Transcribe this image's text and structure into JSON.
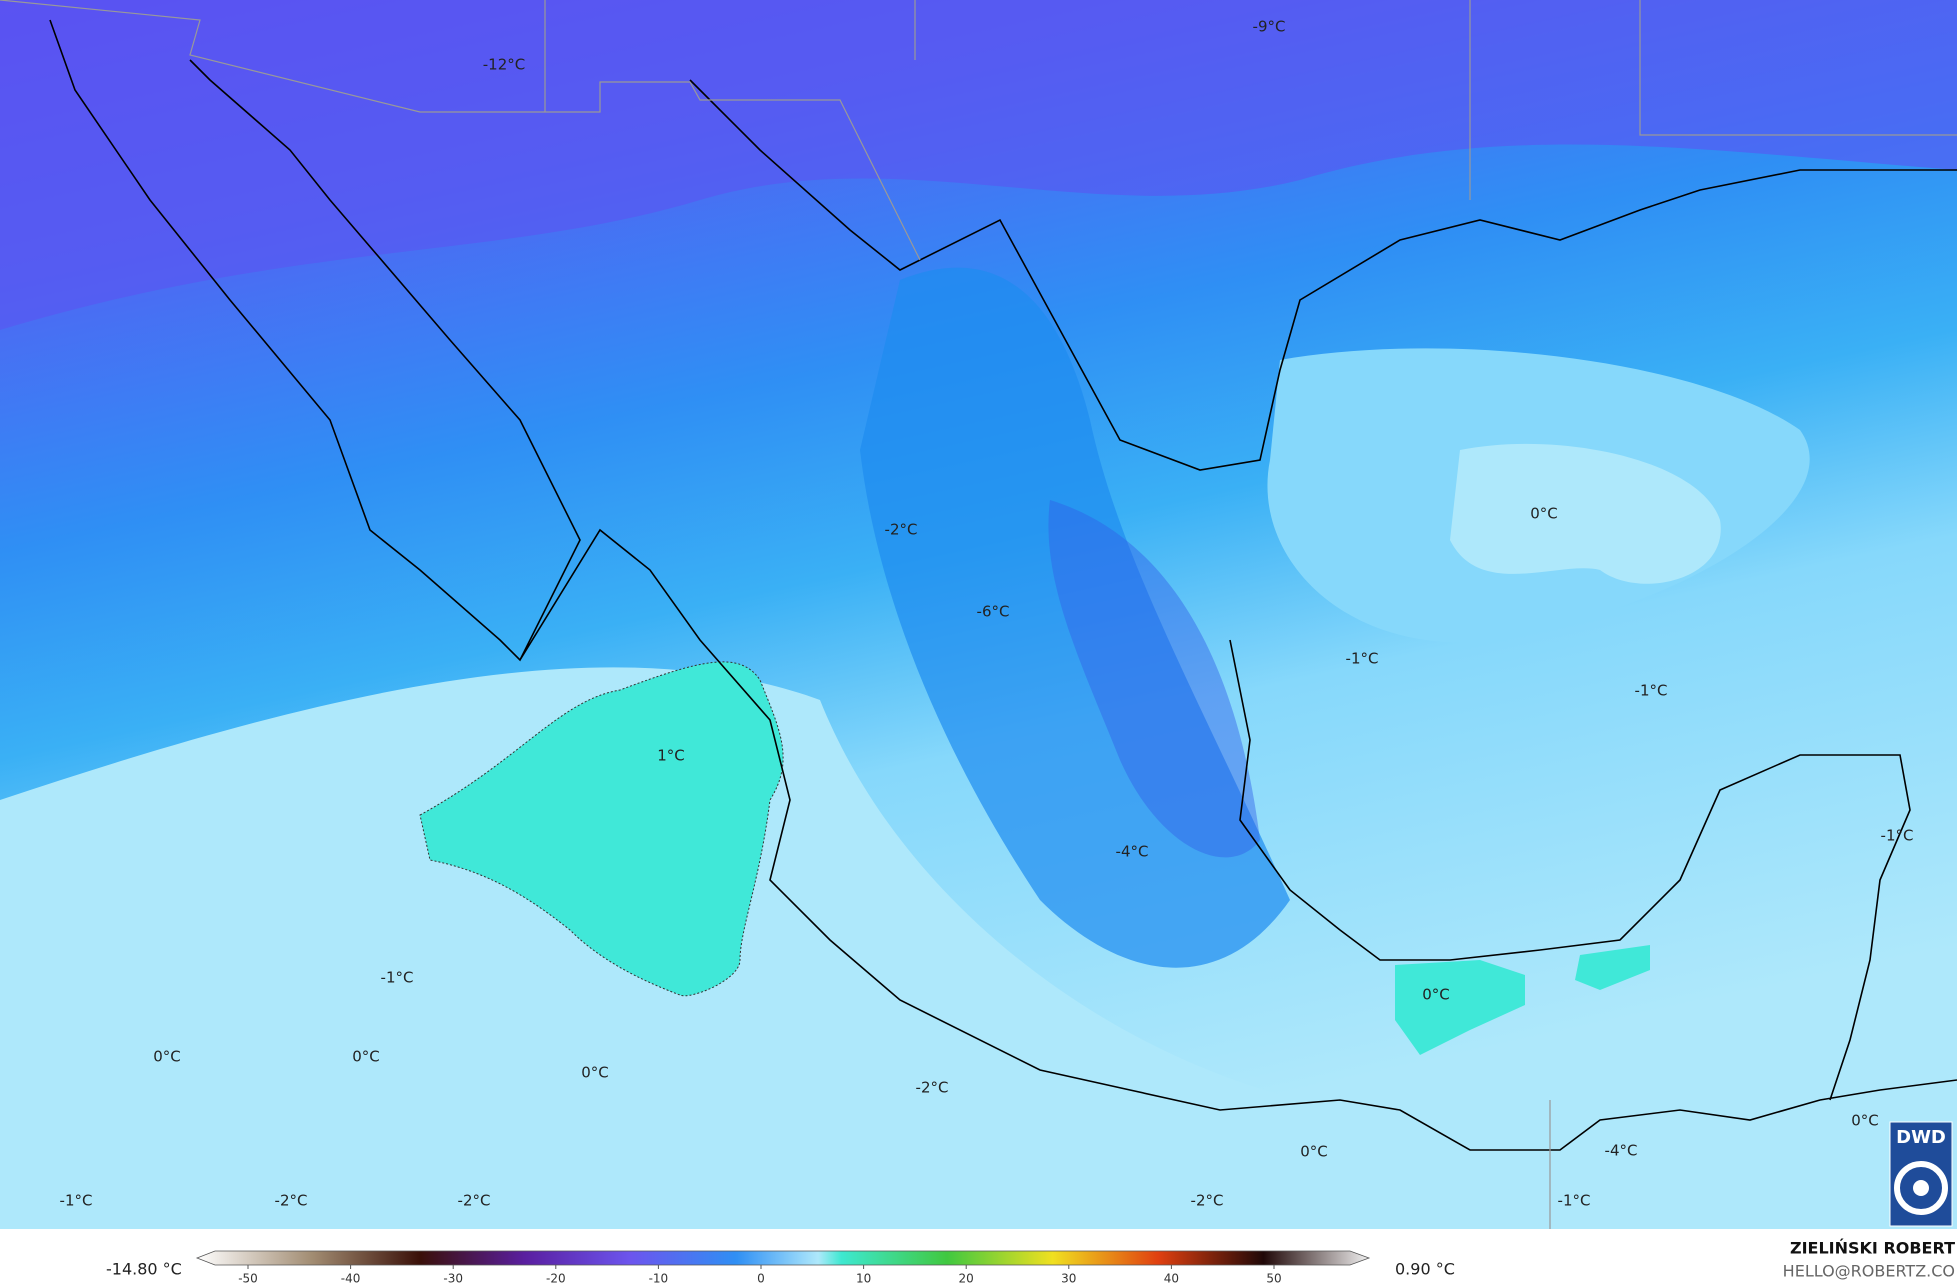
{
  "map": {
    "labels": [
      "-12°C",
      "-9°C",
      "0°C",
      "-2°C",
      "-6°C",
      "-1°C",
      "-1°C",
      "1°C",
      "-4°C",
      "-1°C",
      "-1°C",
      "0°C",
      "0°C",
      "0°C",
      "0°C",
      "-2°C",
      "0°C",
      "-4°C",
      "0°C",
      "-1°C",
      "-2°C",
      "-2°C",
      "-2°C",
      "-1°C"
    ]
  },
  "colorbar": {
    "min_label": "-14.80 °C",
    "max_label": "0.90 °C",
    "ticks": [
      -50,
      -40,
      -30,
      -20,
      -10,
      0,
      10,
      20,
      30,
      40,
      50
    ]
  },
  "credit": {
    "author": "ZIELIŃSKI ROBERT",
    "email": "HELLO@ROBERTZ.CO"
  },
  "logo": "DWD"
}
